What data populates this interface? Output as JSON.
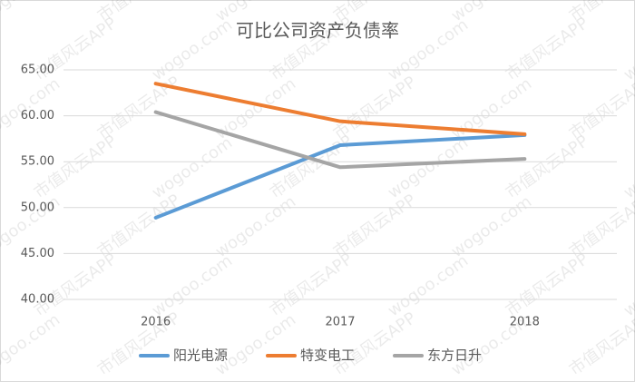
{
  "chart_data": {
    "type": "line",
    "title": "可比公司资产负债率",
    "categories": [
      "2016",
      "2017",
      "2018"
    ],
    "series": [
      {
        "name": "阳光电源",
        "color": "#5b9bd5",
        "values": [
          48.9,
          56.8,
          57.9
        ]
      },
      {
        "name": "特变电工",
        "color": "#ed7d31",
        "values": [
          63.5,
          59.4,
          58.0
        ]
      },
      {
        "name": "东方日升",
        "color": "#a5a5a5",
        "values": [
          60.4,
          54.4,
          55.3
        ]
      }
    ],
    "ylim": [
      40,
      65
    ],
    "yticks": [
      {
        "value": 40,
        "label": "40.00"
      },
      {
        "value": 45,
        "label": "45.00"
      },
      {
        "value": 50,
        "label": "50.00"
      },
      {
        "value": 55,
        "label": "55.00"
      },
      {
        "value": 60,
        "label": "60.00"
      },
      {
        "value": 65,
        "label": "65.00"
      }
    ],
    "grid": true,
    "legend": "bottom",
    "watermark": [
      "wogoo.com",
      "市值风云APP"
    ]
  }
}
